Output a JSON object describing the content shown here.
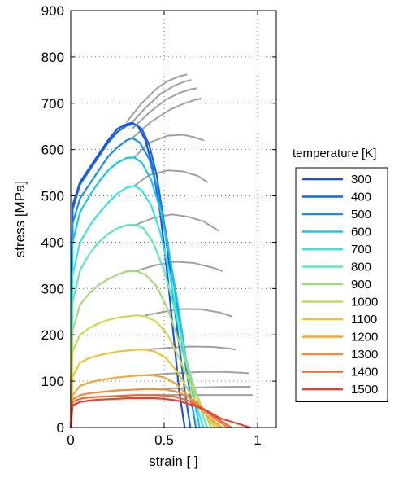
{
  "chart_data": {
    "type": "line",
    "xlabel": "strain [  ]",
    "ylabel": "stress [MPa]",
    "xlim": [
      0,
      1.1
    ],
    "ylim": [
      0,
      900
    ],
    "xticks": [
      0,
      0.5,
      1
    ],
    "xtick_labels": [
      "0",
      "0.5",
      "1"
    ],
    "yticks": [
      0,
      100,
      200,
      300,
      400,
      500,
      600,
      700,
      800,
      900
    ],
    "ytick_labels": [
      "0",
      "100",
      "200",
      "300",
      "400",
      "500",
      "600",
      "700",
      "800",
      "900"
    ],
    "grid": true,
    "legend": {
      "title": "temperature [K]",
      "position": "right"
    },
    "series": [
      {
        "name": "300",
        "color": "#1f50d8",
        "type": "colored",
        "x": [
          0,
          0.01,
          0.05,
          0.1,
          0.15,
          0.2,
          0.25,
          0.3,
          0.33,
          0.36,
          0.4,
          0.44,
          0.48,
          0.52,
          0.55,
          0.58,
          0.61
        ],
        "y": [
          0,
          480,
          530,
          560,
          590,
          620,
          645,
          655,
          658,
          650,
          620,
          560,
          460,
          320,
          200,
          80,
          0
        ]
      },
      {
        "name": "400",
        "color": "#1566e0",
        "type": "colored",
        "x": [
          0,
          0.01,
          0.05,
          0.1,
          0.15,
          0.2,
          0.25,
          0.3,
          0.34,
          0.38,
          0.42,
          0.46,
          0.5,
          0.54,
          0.58,
          0.61,
          0.64
        ],
        "y": [
          0,
          470,
          525,
          555,
          585,
          615,
          638,
          652,
          655,
          645,
          610,
          545,
          440,
          310,
          180,
          80,
          0
        ]
      },
      {
        "name": "500",
        "color": "#1a8fe8",
        "type": "colored",
        "x": [
          0,
          0.01,
          0.05,
          0.1,
          0.15,
          0.2,
          0.25,
          0.3,
          0.33,
          0.37,
          0.42,
          0.46,
          0.51,
          0.56,
          0.6,
          0.64,
          0.67
        ],
        "y": [
          0,
          440,
          495,
          525,
          555,
          585,
          605,
          620,
          625,
          615,
          580,
          520,
          420,
          290,
          170,
          70,
          0
        ]
      },
      {
        "name": "600",
        "color": "#17c6ea",
        "type": "colored",
        "x": [
          0,
          0.01,
          0.05,
          0.1,
          0.15,
          0.2,
          0.25,
          0.3,
          0.34,
          0.38,
          0.43,
          0.48,
          0.53,
          0.58,
          0.62,
          0.66,
          0.69
        ],
        "y": [
          0,
          400,
          465,
          500,
          530,
          555,
          572,
          582,
          583,
          572,
          535,
          470,
          370,
          250,
          140,
          60,
          0
        ]
      },
      {
        "name": "700",
        "color": "#35e3e0",
        "type": "colored",
        "x": [
          0,
          0.01,
          0.05,
          0.1,
          0.15,
          0.2,
          0.25,
          0.3,
          0.34,
          0.38,
          0.43,
          0.48,
          0.53,
          0.58,
          0.63,
          0.67,
          0.71
        ],
        "y": [
          0,
          330,
          400,
          435,
          462,
          485,
          505,
          518,
          522,
          512,
          480,
          420,
          330,
          220,
          120,
          50,
          0
        ]
      },
      {
        "name": "800",
        "color": "#5ee6bc",
        "type": "colored",
        "x": [
          0,
          0.01,
          0.05,
          0.1,
          0.15,
          0.2,
          0.25,
          0.3,
          0.35,
          0.39,
          0.44,
          0.5,
          0.56,
          0.61,
          0.66,
          0.7,
          0.73
        ],
        "y": [
          0,
          270,
          340,
          375,
          400,
          418,
          430,
          437,
          438,
          430,
          400,
          340,
          250,
          160,
          85,
          35,
          0
        ]
      },
      {
        "name": "900",
        "color": "#a3d880",
        "type": "colored",
        "x": [
          0,
          0.01,
          0.05,
          0.1,
          0.15,
          0.2,
          0.25,
          0.3,
          0.35,
          0.4,
          0.46,
          0.52,
          0.58,
          0.64,
          0.69,
          0.73,
          0.75
        ],
        "y": [
          0,
          210,
          265,
          290,
          308,
          320,
          330,
          337,
          338,
          330,
          305,
          255,
          185,
          110,
          55,
          20,
          0
        ]
      },
      {
        "name": "1000",
        "color": "#cdd852",
        "type": "colored",
        "x": [
          0,
          0.01,
          0.05,
          0.1,
          0.15,
          0.2,
          0.25,
          0.3,
          0.35,
          0.4,
          0.46,
          0.52,
          0.58,
          0.64,
          0.7,
          0.74,
          0.77
        ],
        "y": [
          0,
          165,
          200,
          215,
          225,
          232,
          237,
          240,
          242,
          240,
          228,
          200,
          150,
          95,
          45,
          15,
          0
        ]
      },
      {
        "name": "1100",
        "color": "#e9c43a",
        "type": "colored",
        "x": [
          0,
          0.01,
          0.05,
          0.1,
          0.15,
          0.2,
          0.25,
          0.3,
          0.35,
          0.4,
          0.45,
          0.51,
          0.57,
          0.63,
          0.69,
          0.75,
          0.79
        ],
        "y": [
          0,
          110,
          140,
          150,
          156,
          160,
          164,
          166,
          168,
          168,
          164,
          150,
          120,
          80,
          45,
          15,
          0
        ]
      },
      {
        "name": "1200",
        "color": "#f2a53a",
        "type": "colored",
        "x": [
          0,
          0.01,
          0.05,
          0.1,
          0.15,
          0.2,
          0.25,
          0.3,
          0.35,
          0.4,
          0.45,
          0.5,
          0.56,
          0.62,
          0.68,
          0.75,
          0.81
        ],
        "y": [
          0,
          70,
          90,
          97,
          102,
          105,
          108,
          110,
          112,
          113,
          112,
          108,
          95,
          72,
          45,
          18,
          0
        ]
      },
      {
        "name": "1300",
        "color": "#f28b3b",
        "type": "colored",
        "x": [
          0,
          0.01,
          0.05,
          0.1,
          0.15,
          0.2,
          0.25,
          0.3,
          0.35,
          0.4,
          0.45,
          0.5,
          0.56,
          0.62,
          0.69,
          0.76,
          0.84
        ],
        "y": [
          0,
          60,
          70,
          74,
          76,
          78,
          80,
          81,
          82,
          83,
          83,
          82,
          78,
          68,
          48,
          22,
          0
        ]
      },
      {
        "name": "1400",
        "color": "#ef6636",
        "type": "colored",
        "x": [
          0,
          0.01,
          0.05,
          0.1,
          0.15,
          0.2,
          0.25,
          0.3,
          0.35,
          0.4,
          0.45,
          0.5,
          0.56,
          0.63,
          0.7,
          0.78,
          0.86
        ],
        "y": [
          0,
          55,
          62,
          65,
          66,
          67,
          68,
          69,
          70,
          70,
          70,
          69,
          66,
          58,
          42,
          20,
          0
        ]
      },
      {
        "name": "1500",
        "color": "#e8402f",
        "type": "colored",
        "x": [
          0,
          0.01,
          0.05,
          0.1,
          0.15,
          0.2,
          0.25,
          0.3,
          0.35,
          0.4,
          0.45,
          0.5,
          0.57,
          0.64,
          0.72,
          0.8,
          0.96
        ],
        "y": [
          0,
          48,
          55,
          58,
          60,
          61,
          62,
          63,
          63,
          63,
          63,
          62,
          58,
          50,
          38,
          20,
          0
        ]
      },
      {
        "name": "",
        "color": "#a0a0a0",
        "type": "reference",
        "x": [
          0.3,
          0.38,
          0.46,
          0.52,
          0.58,
          0.62
        ],
        "y": [
          660,
          700,
          732,
          748,
          758,
          762
        ]
      },
      {
        "name": "",
        "color": "#a0a0a0",
        "type": "reference",
        "x": [
          0.32,
          0.4,
          0.48,
          0.55,
          0.61,
          0.64
        ],
        "y": [
          655,
          690,
          720,
          737,
          747,
          750
        ]
      },
      {
        "name": "",
        "color": "#a0a0a0",
        "type": "reference",
        "x": [
          0.33,
          0.42,
          0.51,
          0.58,
          0.64,
          0.67
        ],
        "y": [
          645,
          680,
          708,
          722,
          730,
          732
        ]
      },
      {
        "name": "",
        "color": "#a0a0a0",
        "type": "reference",
        "x": [
          0.33,
          0.43,
          0.53,
          0.61,
          0.67,
          0.7
        ],
        "y": [
          625,
          660,
          686,
          700,
          708,
          710
        ]
      },
      {
        "name": "",
        "color": "#a0a0a0",
        "type": "reference",
        "x": [
          0.34,
          0.42,
          0.52,
          0.6,
          0.66,
          0.71
        ],
        "y": [
          583,
          615,
          630,
          632,
          627,
          620
        ]
      },
      {
        "name": "",
        "color": "#a0a0a0",
        "type": "reference",
        "x": [
          0.34,
          0.42,
          0.52,
          0.6,
          0.68,
          0.73
        ],
        "y": [
          522,
          545,
          555,
          553,
          543,
          530
        ]
      },
      {
        "name": "",
        "color": "#a0a0a0",
        "type": "reference",
        "x": [
          0.35,
          0.44,
          0.54,
          0.63,
          0.71,
          0.79
        ],
        "y": [
          438,
          452,
          460,
          455,
          445,
          425
        ]
      },
      {
        "name": "",
        "color": "#a0a0a0",
        "type": "reference",
        "x": [
          0.35,
          0.45,
          0.56,
          0.66,
          0.76,
          0.81
        ],
        "y": [
          338,
          350,
          358,
          355,
          345,
          338
        ]
      },
      {
        "name": "",
        "color": "#a0a0a0",
        "type": "reference",
        "x": [
          0.4,
          0.5,
          0.6,
          0.7,
          0.8,
          0.86
        ],
        "y": [
          242,
          250,
          256,
          255,
          248,
          240
        ]
      },
      {
        "name": "",
        "color": "#a0a0a0",
        "type": "reference",
        "x": [
          0.4,
          0.52,
          0.64,
          0.76,
          0.86,
          0.88
        ],
        "y": [
          168,
          172,
          175,
          174,
          170,
          168
        ]
      },
      {
        "name": "",
        "color": "#a0a0a0",
        "type": "reference",
        "x": [
          0.4,
          0.55,
          0.7,
          0.82,
          0.92,
          0.95
        ],
        "y": [
          113,
          117,
          120,
          120,
          118,
          117
        ]
      },
      {
        "name": "",
        "color": "#a0a0a0",
        "type": "reference",
        "x": [
          0.45,
          0.6,
          0.75,
          0.88,
          0.96
        ],
        "y": [
          83,
          85,
          87,
          88,
          88
        ]
      },
      {
        "name": "",
        "color": "#a0a0a0",
        "type": "reference",
        "x": [
          0.45,
          0.6,
          0.75,
          0.88,
          0.97
        ],
        "y": [
          70,
          70,
          70,
          70,
          70
        ]
      }
    ]
  }
}
